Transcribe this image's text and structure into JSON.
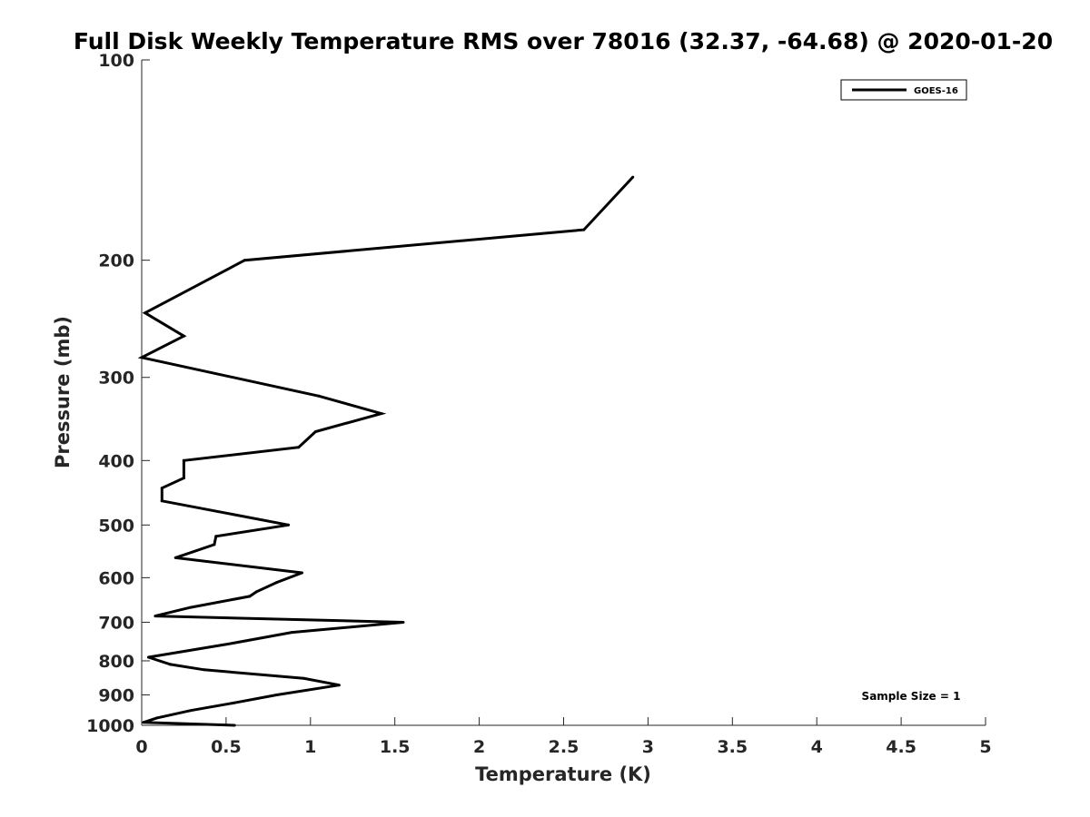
{
  "chart_data": {
    "type": "line",
    "title": "Full Disk Weekly Temperature RMS over 78016 (32.37, -64.68) @ 2020-01-20",
    "xlabel": "Temperature (K)",
    "ylabel": "Pressure (mb)",
    "xlim": [
      0,
      5
    ],
    "ylim": [
      100,
      1000
    ],
    "y_scale": "log",
    "y_reversed": true,
    "x_ticks": [
      "0",
      "0.5",
      "1",
      "1.5",
      "2",
      "2.5",
      "3",
      "3.5",
      "4",
      "4.5",
      "5"
    ],
    "y_ticks": [
      "100",
      "200",
      "300",
      "400",
      "500",
      "600",
      "700",
      "800",
      "900",
      "1000"
    ],
    "grid": false,
    "legend_position": "top-right",
    "annotation": "Sample Size = 1",
    "series": [
      {
        "name": "GOES-16",
        "color": "#000000",
        "points": [
          [
            2.91,
            150
          ],
          [
            2.62,
            180
          ],
          [
            0.61,
            200
          ],
          [
            0.02,
            240
          ],
          [
            0.25,
            260
          ],
          [
            0.0,
            280
          ],
          [
            1.05,
            320
          ],
          [
            1.42,
            340
          ],
          [
            1.03,
            362
          ],
          [
            0.93,
            382
          ],
          [
            0.25,
            400
          ],
          [
            0.25,
            425
          ],
          [
            0.12,
            440
          ],
          [
            0.12,
            460
          ],
          [
            0.87,
            500
          ],
          [
            0.44,
            520
          ],
          [
            0.43,
            535
          ],
          [
            0.2,
            560
          ],
          [
            0.95,
            590
          ],
          [
            0.8,
            610
          ],
          [
            0.68,
            630
          ],
          [
            0.64,
            640
          ],
          [
            0.29,
            665
          ],
          [
            0.08,
            685
          ],
          [
            1.55,
            700
          ],
          [
            0.89,
            725
          ],
          [
            0.51,
            755
          ],
          [
            0.04,
            790
          ],
          [
            0.17,
            810
          ],
          [
            0.37,
            825
          ],
          [
            0.96,
            850
          ],
          [
            1.17,
            870
          ],
          [
            0.8,
            900
          ],
          [
            0.55,
            925
          ],
          [
            0.29,
            950
          ],
          [
            0.09,
            975
          ],
          [
            0.01,
            990
          ],
          [
            0.55,
            1000
          ]
        ]
      }
    ]
  }
}
